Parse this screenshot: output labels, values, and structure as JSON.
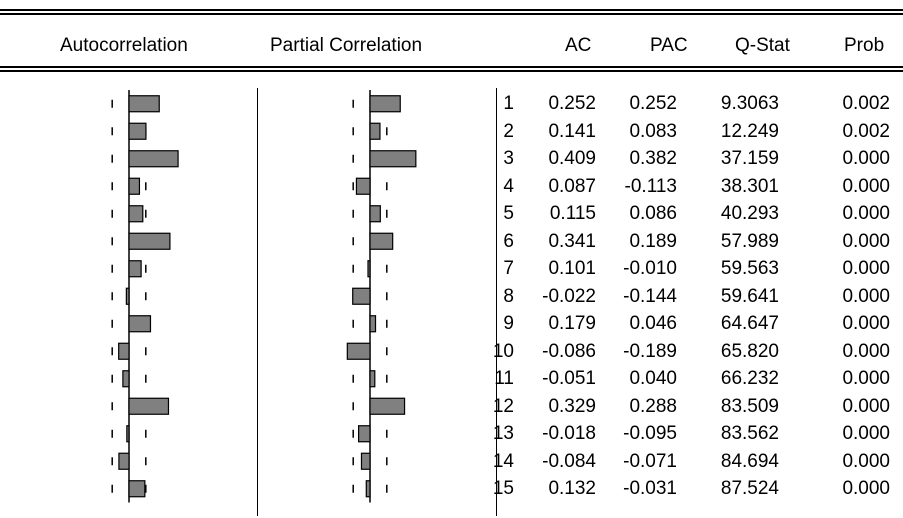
{
  "headers": {
    "autocorrelation": "Autocorrelation",
    "partial_correlation": "Partial Correlation",
    "lag": "",
    "ac": "AC",
    "pac": "PAC",
    "qstat": "Q-Stat",
    "prob": "Prob"
  },
  "bar_fill": "#808080",
  "chart_data": {
    "type": "table",
    "columns": [
      "",
      "AC",
      "PAC",
      "Q-Stat",
      "Prob"
    ],
    "rows": [
      [
        "1",
        "0.252",
        "0.252",
        "9.3063",
        "0.002"
      ],
      [
        "2",
        "0.141",
        "0.083",
        "12.249",
        "0.002"
      ],
      [
        "3",
        "0.409",
        "0.382",
        "37.159",
        "0.000"
      ],
      [
        "4",
        "0.087",
        "-0.113",
        "38.301",
        "0.000"
      ],
      [
        "5",
        "0.115",
        "0.086",
        "40.293",
        "0.000"
      ],
      [
        "6",
        "0.341",
        "0.189",
        "57.989",
        "0.000"
      ],
      [
        "7",
        "0.101",
        "-0.010",
        "59.563",
        "0.000"
      ],
      [
        "8",
        "-0.022",
        "-0.144",
        "59.641",
        "0.000"
      ],
      [
        "9",
        "0.179",
        "0.046",
        "64.647",
        "0.000"
      ],
      [
        "10",
        "-0.086",
        "-0.189",
        "65.820",
        "0.000"
      ],
      [
        "11",
        "-0.051",
        "0.040",
        "66.232",
        "0.000"
      ],
      [
        "12",
        "0.329",
        "0.288",
        "83.509",
        "0.000"
      ],
      [
        "13",
        "-0.018",
        "-0.095",
        "83.562",
        "0.000"
      ],
      [
        "14",
        "-0.084",
        "-0.071",
        "84.694",
        "0.000"
      ],
      [
        "15",
        "0.132",
        "-0.031",
        "87.524",
        "0.000"
      ]
    ],
    "confidence_band": 0.14
  }
}
